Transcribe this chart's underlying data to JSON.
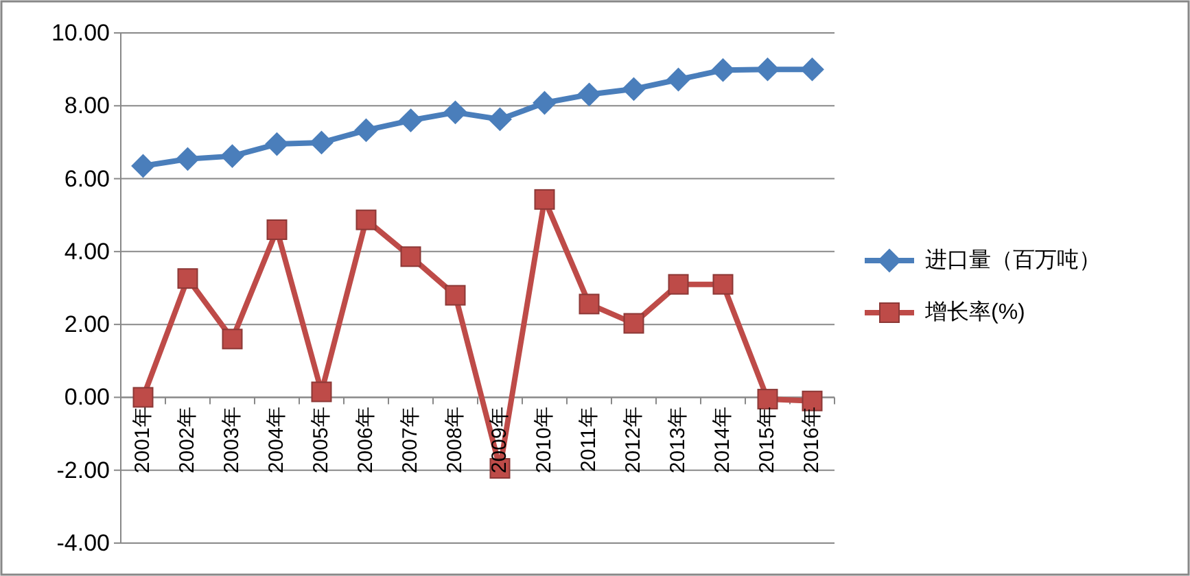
{
  "chart_data": {
    "type": "line",
    "categories": [
      "2001年",
      "2002年",
      "2003年",
      "2004年",
      "2005年",
      "2006年",
      "2007年",
      "2008年",
      "2009年",
      "2010年",
      "2011年",
      "2012年",
      "2013年",
      "2014年",
      "2015年",
      "2016年"
    ],
    "series": [
      {
        "name": "进口量（百万吨）",
        "color": "#4a7ebb",
        "marker": "diamond",
        "values": [
          6.35,
          6.54,
          6.62,
          6.95,
          6.99,
          7.33,
          7.6,
          7.82,
          7.63,
          8.08,
          8.31,
          8.46,
          8.72,
          8.98,
          9.0,
          9.0
        ]
      },
      {
        "name": "增长率(%)",
        "color": "#be4b48",
        "marker": "square",
        "values": [
          0.0,
          3.26,
          1.6,
          4.6,
          0.15,
          4.87,
          3.86,
          2.8,
          -1.95,
          5.43,
          2.56,
          2.03,
          3.1,
          3.1,
          -0.05,
          -0.1
        ]
      }
    ],
    "ylim": [
      -4,
      10
    ],
    "yticks": [
      {
        "value": -4,
        "label": "-4.00"
      },
      {
        "value": -2,
        "label": "-2.00"
      },
      {
        "value": 0,
        "label": "0.00"
      },
      {
        "value": 2,
        "label": "2.00"
      },
      {
        "value": 4,
        "label": "4.00"
      },
      {
        "value": 6,
        "label": "6.00"
      },
      {
        "value": 8,
        "label": "8.00"
      },
      {
        "value": 10,
        "label": "10.00"
      }
    ],
    "grid": "y",
    "legend": "right"
  }
}
